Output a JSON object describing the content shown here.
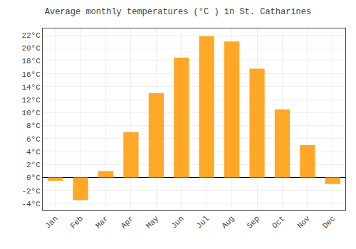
{
  "chart_data": {
    "type": "bar",
    "title": "Average monthly temperatures (°C ) in St. Catharines",
    "categories": [
      "Jan",
      "Feb",
      "Mar",
      "Apr",
      "May",
      "Jun",
      "Jul",
      "Aug",
      "Sep",
      "Oct",
      "Nov",
      "Dec"
    ],
    "values": [
      -0.5,
      -3.5,
      1.0,
      7.0,
      13.0,
      18.5,
      21.8,
      21.0,
      16.8,
      10.5,
      5.0,
      -1.0
    ],
    "color": "#FFA726",
    "ylim": [
      -5,
      23
    ],
    "yticks": [
      {
        "value": -4,
        "label": "-4°C"
      },
      {
        "value": -2,
        "label": "-2°C"
      },
      {
        "value": 0,
        "label": "0°C"
      },
      {
        "value": 2,
        "label": "2°C"
      },
      {
        "value": 4,
        "label": "4°C"
      },
      {
        "value": 6,
        "label": "6°C"
      },
      {
        "value": 8,
        "label": "8°C"
      },
      {
        "value": 10,
        "label": "10°C"
      },
      {
        "value": 12,
        "label": "12°C"
      },
      {
        "value": 14,
        "label": "14°C"
      },
      {
        "value": 16,
        "label": "16°C"
      },
      {
        "value": 18,
        "label": "18°C"
      },
      {
        "value": 20,
        "label": "20°C"
      },
      {
        "value": 22,
        "label": "22°C"
      }
    ],
    "grid": true
  }
}
